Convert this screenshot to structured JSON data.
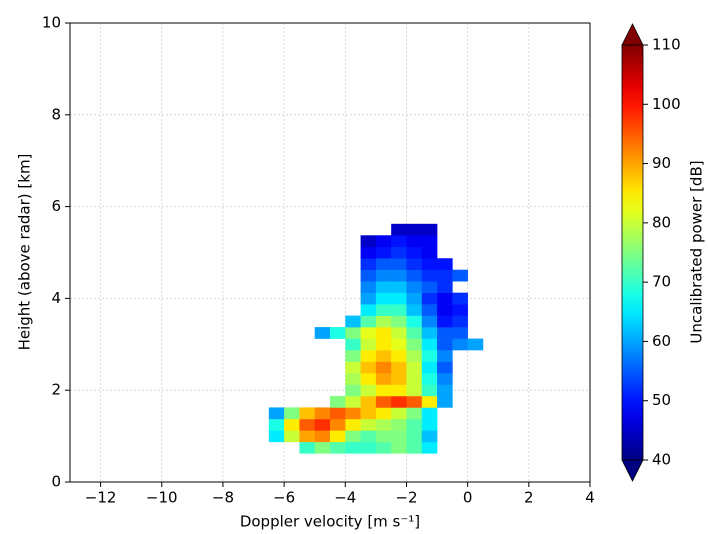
{
  "chart_data": {
    "type": "heatmap",
    "x_label": "Doppler velocity [m s⁻¹]",
    "y_label": "Height (above radar) [km]",
    "colorbar_label": "Uncalibrated power [dB]",
    "x": [
      -6.25,
      -5.75,
      -5.25,
      -4.75,
      -4.25,
      -3.75,
      -3.25,
      -2.75,
      -2.25,
      -1.75,
      -1.25,
      -0.75,
      -0.25,
      0.25
    ],
    "y": [
      0.75,
      1.0,
      1.25,
      1.5,
      1.75,
      2.0,
      2.25,
      2.5,
      2.75,
      3.0,
      3.25,
      3.5,
      3.75,
      4.0,
      4.25,
      4.5,
      4.75,
      5.0,
      5.25,
      5.5
    ],
    "values": [
      [
        null,
        null,
        70,
        75,
        72,
        70,
        70,
        72,
        75,
        72,
        65,
        null,
        null,
        null
      ],
      [
        65,
        80,
        90,
        92,
        85,
        75,
        72,
        75,
        75,
        72,
        62,
        null,
        null,
        null
      ],
      [
        68,
        85,
        95,
        98,
        92,
        85,
        80,
        78,
        76,
        72,
        65,
        null,
        null,
        null
      ],
      [
        60,
        75,
        88,
        92,
        95,
        92,
        88,
        85,
        80,
        75,
        65,
        null,
        null,
        null
      ],
      [
        null,
        null,
        null,
        null,
        75,
        80,
        88,
        95,
        98,
        95,
        85,
        60,
        null,
        null
      ],
      [
        null,
        null,
        null,
        null,
        null,
        75,
        80,
        85,
        85,
        80,
        70,
        60,
        null,
        null
      ],
      [
        null,
        null,
        null,
        null,
        null,
        78,
        85,
        90,
        88,
        80,
        68,
        58,
        null,
        null
      ],
      [
        null,
        null,
        null,
        null,
        null,
        80,
        88,
        92,
        88,
        80,
        65,
        55,
        null,
        null
      ],
      [
        null,
        null,
        null,
        null,
        null,
        75,
        85,
        88,
        85,
        78,
        68,
        58,
        null,
        null
      ],
      [
        null,
        null,
        null,
        null,
        null,
        70,
        80,
        85,
        82,
        75,
        65,
        55,
        58,
        60
      ],
      [
        null,
        null,
        null,
        60,
        68,
        75,
        82,
        85,
        80,
        72,
        62,
        55,
        55,
        null
      ],
      [
        null,
        null,
        null,
        null,
        null,
        62,
        72,
        78,
        75,
        68,
        58,
        50,
        52,
        null
      ],
      [
        null,
        null,
        null,
        null,
        null,
        null,
        65,
        70,
        70,
        62,
        55,
        48,
        50,
        null
      ],
      [
        null,
        null,
        null,
        null,
        null,
        null,
        60,
        65,
        65,
        60,
        52,
        48,
        52,
        null
      ],
      [
        null,
        null,
        null,
        null,
        null,
        null,
        58,
        62,
        62,
        58,
        55,
        52,
        null,
        null
      ],
      [
        null,
        null,
        null,
        null,
        null,
        null,
        55,
        58,
        58,
        55,
        52,
        52,
        55,
        null
      ],
      [
        null,
        null,
        null,
        null,
        null,
        null,
        52,
        55,
        55,
        52,
        50,
        50,
        null,
        null
      ],
      [
        null,
        null,
        null,
        null,
        null,
        null,
        48,
        50,
        52,
        50,
        48,
        null,
        null,
        null
      ],
      [
        null,
        null,
        null,
        null,
        null,
        null,
        45,
        48,
        50,
        48,
        48,
        null,
        null,
        null
      ],
      [
        null,
        null,
        null,
        null,
        null,
        null,
        null,
        null,
        45,
        45,
        45,
        null,
        null,
        null
      ]
    ],
    "colormap": "jet",
    "xlim": [
      -13,
      4
    ],
    "xticks": [
      {
        "value": -12,
        "label": "−12"
      },
      {
        "value": -10,
        "label": "−10"
      },
      {
        "value": -8,
        "label": "−8"
      },
      {
        "value": -6,
        "label": "−6"
      },
      {
        "value": -4,
        "label": "−4"
      },
      {
        "value": -2,
        "label": "−2"
      },
      0,
      2,
      4
    ],
    "ylim": [
      0,
      10
    ],
    "yticks": [
      0,
      2,
      4,
      6,
      8,
      10
    ],
    "clim": [
      40,
      110
    ],
    "cticks": [
      40,
      50,
      60,
      70,
      80,
      90,
      100,
      110
    ],
    "grid": true
  }
}
